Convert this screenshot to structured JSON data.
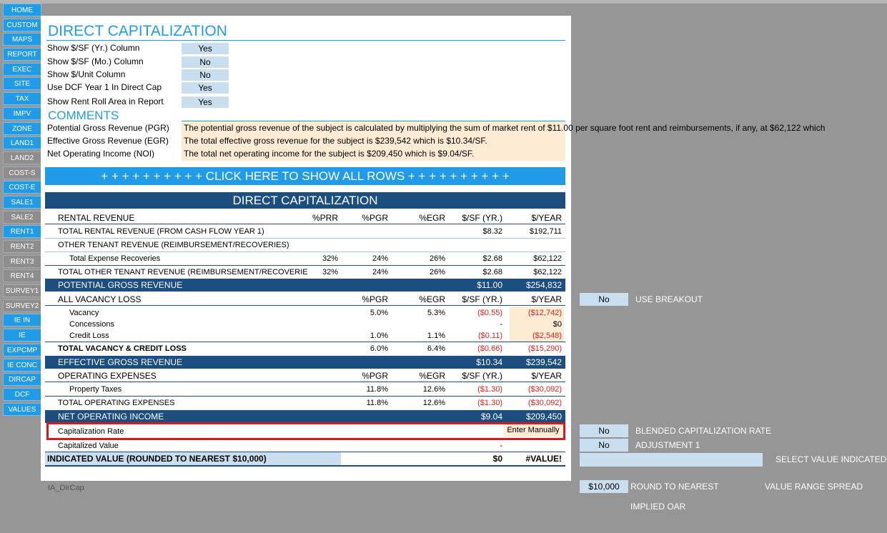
{
  "nav": [
    {
      "label": "HOME",
      "style": "blue"
    },
    {
      "label": "CUSTOM",
      "style": "blue"
    },
    {
      "label": "MAPS",
      "style": "blue"
    },
    {
      "label": "REPORT",
      "style": "blue"
    },
    {
      "label": "EXEC",
      "style": "blue"
    },
    {
      "label": "SITE",
      "style": "blue"
    },
    {
      "label": "TAX",
      "style": "blue"
    },
    {
      "label": "IMPV",
      "style": "blue"
    },
    {
      "label": "ZONE",
      "style": "blue"
    },
    {
      "label": "LAND1",
      "style": "blue"
    },
    {
      "label": "LAND2",
      "style": "gray"
    },
    {
      "label": "COST-S",
      "style": "gray"
    },
    {
      "label": "COST-E",
      "style": "blue"
    },
    {
      "label": "SALE1",
      "style": "blue"
    },
    {
      "label": "SALE2",
      "style": "gray"
    },
    {
      "label": "RENT1",
      "style": "blue"
    },
    {
      "label": "RENT2",
      "style": "gray"
    },
    {
      "label": "RENT3",
      "style": "gray"
    },
    {
      "label": "RENT4",
      "style": "gray"
    },
    {
      "label": "SURVEY1",
      "style": "gray"
    },
    {
      "label": "SURVEY2",
      "style": "gray"
    },
    {
      "label": "IE IN",
      "style": "blue"
    },
    {
      "label": "IE",
      "style": "blue"
    },
    {
      "label": "EXPCMP",
      "style": "blue"
    },
    {
      "label": "IE CONC",
      "style": "blue"
    },
    {
      "label": "DIRCAP",
      "style": "blue"
    },
    {
      "label": "DCF",
      "style": "blue"
    },
    {
      "label": "VALUES",
      "style": "blue"
    }
  ],
  "header": {
    "title": "DIRECT CAPITALIZATION",
    "options": [
      {
        "label": "Show $/SF (Yr.) Column",
        "value": "Yes"
      },
      {
        "label": "Show $/SF (Mo.) Column",
        "value": "No"
      },
      {
        "label": "Show $/Unit Column",
        "value": "No"
      },
      {
        "label": "Use DCF Year 1 In Direct Cap",
        "value": "Yes"
      },
      {
        "label": "Show Rent Roll Area in Report",
        "value": "Yes"
      }
    ]
  },
  "comments": {
    "title": "COMMENTS",
    "items": [
      {
        "label": "Potential Gross Revenue (PGR)",
        "text": "The potential gross revenue of the subject is calculated by multiplying the sum of market rent of $11.00 per square foot rent and reimbursements, if any, at $62,122 which"
      },
      {
        "label": "Effective Gross Revenue (EGR)",
        "text": "The total effective gross revenue for the subject is $239,542 which is $10.34/SF."
      },
      {
        "label": "Net Operating Income (NOI)",
        "text": "The total net operating income for the subject is $209,450 which is $9.04/SF."
      }
    ]
  },
  "show_rows_label": "+ + + + + + + + + + CLICK HERE TO SHOW ALL ROWS + + + + + + + + + +",
  "table": {
    "title": "DIRECT CAPITALIZATION",
    "rental_header": {
      "label": "RENTAL REVENUE",
      "c1": "%PRR",
      "c2": "%PGR",
      "c3": "%EGR",
      "c4": "$/SF (YR.)",
      "c5": "$/YEAR"
    },
    "total_rental": {
      "label": "TOTAL RENTAL REVENUE (FROM CASH FLOW YEAR 1)",
      "c4": "$8.32",
      "c5": "$192,711"
    },
    "other_header": {
      "label": "OTHER TENANT REVENUE (REIMBURSEMENT/RECOVERIES)"
    },
    "expense_recov": {
      "label": "Total Expense Recoveries",
      "c1": "32%",
      "c2": "24%",
      "c3": "26%",
      "c4": "$2.68",
      "c5": "$62,122"
    },
    "total_other": {
      "label": "TOTAL OTHER TENANT REVENUE (REIMBURSEMENT/RECOVERIE",
      "c1": "32%",
      "c2": "24%",
      "c3": "26%",
      "c4": "$2.68",
      "c5": "$62,122"
    },
    "pgr": {
      "label": "POTENTIAL GROSS REVENUE",
      "c4": "$11.00",
      "c5": "$254,832"
    },
    "vacancy_header": {
      "label": "ALL VACANCY LOSS",
      "c2": "%PGR",
      "c3": "%EGR",
      "c4": "$/SF (YR.)",
      "c5": "$/YEAR"
    },
    "vacancy": {
      "label": "Vacancy",
      "c2": "5.0%",
      "c3": "5.3%",
      "c4": "($0.55)",
      "c5": "($12,742)"
    },
    "concessions": {
      "label": "Concessions",
      "c4": "-",
      "c5": "$0"
    },
    "credit_loss": {
      "label": "Credit Loss",
      "c2": "1.0%",
      "c3": "1.1%",
      "c4": "($0.11)",
      "c5": "($2,548)"
    },
    "total_vacancy": {
      "label": "TOTAL VACANCY & CREDIT LOSS",
      "c2": "6.0%",
      "c3": "6.4%",
      "c4": "($0.66)",
      "c5": "($15,290)"
    },
    "egr": {
      "label": "EFFECTIVE GROSS REVENUE",
      "c4": "$10.34",
      "c5": "$239,542"
    },
    "opex_header": {
      "label": "OPERATING EXPENSES",
      "c2": "%PGR",
      "c3": "%EGR",
      "c4": "$/SF (YR.)",
      "c5": "$/YEAR"
    },
    "property_taxes": {
      "label": "Property Taxes",
      "c2": "11.8%",
      "c3": "12.6%",
      "c4": "($1.30)",
      "c5": "($30,092)"
    },
    "total_opex": {
      "label": "TOTAL OPERATING EXPENSES",
      "c2": "11.8%",
      "c3": "12.6%",
      "c4": "($1.30)",
      "c5": "($30,092)"
    },
    "noi": {
      "label": "NET OPERATING INCOME",
      "c4": "$9.04",
      "c5": "$209,450"
    },
    "cap_rate": {
      "label": "Capitalization Rate",
      "value": "Enter Manually"
    },
    "cap_value": {
      "label": "Capitalized Value",
      "c4": "-"
    },
    "indicated": {
      "label": "INDICATED VALUE (ROUNDED TO NEAREST $10,000)",
      "c4": "$0",
      "c5": "#VALUE!"
    }
  },
  "sheet_name": "IA_DirCap",
  "side": {
    "use_breakout": {
      "value": "No",
      "label": "USE BREAKOUT"
    },
    "blended": {
      "value": "No",
      "label": "BLENDED CAPITALIZATION RATE"
    },
    "adjustment": {
      "value": "No",
      "label": "ADJUSTMENT 1"
    },
    "select_value": {
      "value": "",
      "label": "SELECT VALUE INDICATED"
    },
    "round": {
      "value": "$10,000",
      "label": "ROUND TO NEAREST"
    },
    "range_spread_label": "VALUE RANGE SPREAD",
    "implied_oar_label": "IMPLIED OAR"
  }
}
